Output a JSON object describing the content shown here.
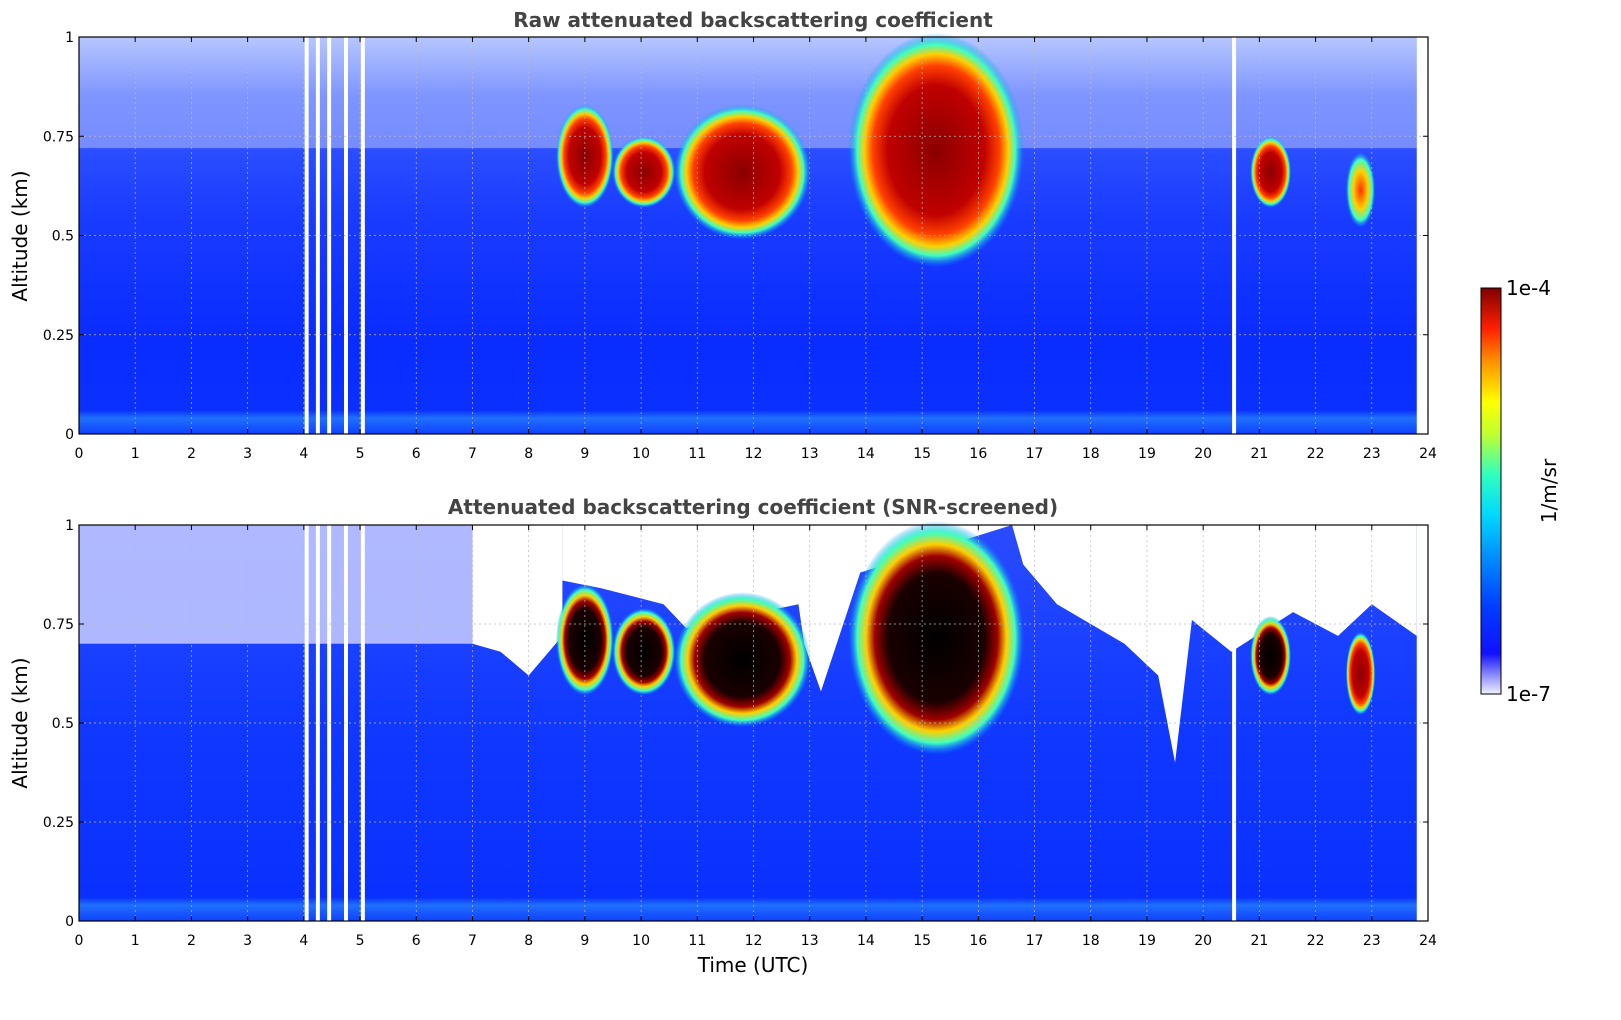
{
  "chart_data": [
    {
      "type": "heatmap",
      "title": "Raw attenuated backscattering coefficient",
      "xlabel": "",
      "ylabel": "Altitude (km)",
      "xlim": [
        0,
        24
      ],
      "ylim": [
        0,
        1
      ],
      "x_ticks": [
        "0",
        "1",
        "2",
        "3",
        "4",
        "5",
        "6",
        "7",
        "8",
        "9",
        "10",
        "11",
        "12",
        "13",
        "14",
        "15",
        "16",
        "17",
        "18",
        "19",
        "20",
        "21",
        "22",
        "23",
        "24"
      ],
      "y_ticks": [
        "0",
        "0.25",
        "0.5",
        "0.75",
        "1"
      ],
      "grid": true,
      "data_end_time": 23.8,
      "data_gaps_time": [
        4.05,
        4.25,
        4.45,
        4.75,
        5.05,
        20.55
      ],
      "features": [
        {
          "time_start": 8.7,
          "time_end": 9.3,
          "alt_bottom": 0.6,
          "alt_top": 0.8,
          "level": "high"
        },
        {
          "time_start": 9.7,
          "time_end": 10.4,
          "alt_bottom": 0.6,
          "alt_top": 0.72,
          "level": "high"
        },
        {
          "time_start": 10.8,
          "time_end": 12.8,
          "alt_bottom": 0.52,
          "alt_top": 0.8,
          "level": "high"
        },
        {
          "time_start": 13.9,
          "time_end": 16.6,
          "alt_bottom": 0.45,
          "alt_top": 0.98,
          "level": "high"
        },
        {
          "time_start": 21.05,
          "time_end": 21.35,
          "alt_bottom": 0.6,
          "alt_top": 0.72,
          "level": "high"
        },
        {
          "time_start": 22.75,
          "time_end": 22.85,
          "alt_bottom": 0.55,
          "alt_top": 0.68,
          "level": "medium"
        }
      ]
    },
    {
      "type": "heatmap",
      "title": "Attenuated backscattering coefficient (SNR-screened)",
      "xlabel": "Time (UTC)",
      "ylabel": "Altitude (km)",
      "xlim": [
        0,
        24
      ],
      "ylim": [
        0,
        1
      ],
      "x_ticks": [
        "0",
        "1",
        "2",
        "3",
        "4",
        "5",
        "6",
        "7",
        "8",
        "9",
        "10",
        "11",
        "12",
        "13",
        "14",
        "15",
        "16",
        "17",
        "18",
        "19",
        "20",
        "21",
        "22",
        "23",
        "24"
      ],
      "y_ticks": [
        "0",
        "0.25",
        "0.5",
        "0.75",
        "1"
      ],
      "grid": true,
      "data_end_time": 23.8,
      "data_gaps_time": [
        4.05,
        4.25,
        4.45,
        4.75,
        5.05,
        20.55
      ],
      "features": [
        {
          "time_start": 8.7,
          "time_end": 9.3,
          "alt_bottom": 0.6,
          "alt_top": 0.82,
          "level": "saturated"
        },
        {
          "time_start": 9.7,
          "time_end": 10.4,
          "alt_bottom": 0.6,
          "alt_top": 0.76,
          "level": "saturated"
        },
        {
          "time_start": 10.8,
          "time_end": 12.8,
          "alt_bottom": 0.52,
          "alt_top": 0.8,
          "level": "saturated"
        },
        {
          "time_start": 13.9,
          "time_end": 16.6,
          "alt_bottom": 0.45,
          "alt_top": 0.98,
          "level": "saturated"
        },
        {
          "time_start": 21.05,
          "time_end": 21.35,
          "alt_bottom": 0.6,
          "alt_top": 0.74,
          "level": "saturated"
        },
        {
          "time_start": 22.75,
          "time_end": 22.85,
          "alt_bottom": 0.55,
          "alt_top": 0.7,
          "level": "high"
        }
      ]
    }
  ],
  "colorbar": {
    "label": "1/m/sr",
    "max_label": "1e-4",
    "min_label": "1e-7",
    "scale": "log",
    "colormap": [
      "#f0f0ff",
      "#0000ff",
      "#0080ff",
      "#00e0ff",
      "#00ff80",
      "#ffff00",
      "#ff8000",
      "#ff0000",
      "#800000"
    ]
  }
}
